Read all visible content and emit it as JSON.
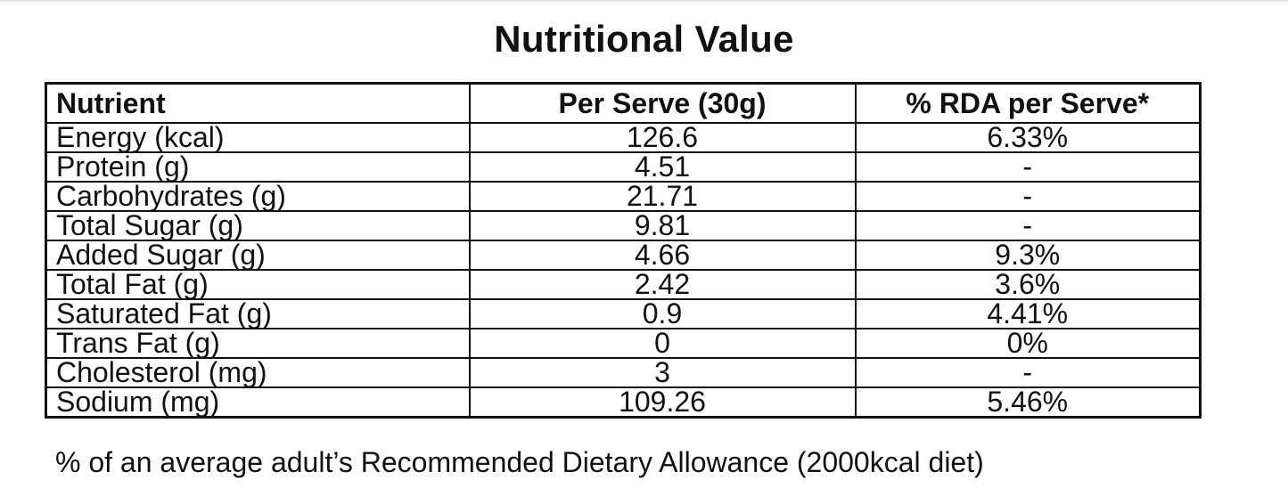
{
  "title": "Nutritional Value",
  "table": {
    "headers": {
      "nutrient": "Nutrient",
      "per_serve": "Per Serve (30g)",
      "rda": "% RDA per Serve*"
    },
    "rows": [
      {
        "nutrient": "Energy (kcal)",
        "per_serve": "126.6",
        "rda": "6.33%"
      },
      {
        "nutrient": "Protein (g)",
        "per_serve": "4.51",
        "rda": "-"
      },
      {
        "nutrient": "Carbohydrates (g)",
        "per_serve": "21.71",
        "rda": "-"
      },
      {
        "nutrient": "Total Sugar (g)",
        "per_serve": "9.81",
        "rda": "-"
      },
      {
        "nutrient": "Added Sugar (g)",
        "per_serve": "4.66",
        "rda": "9.3%"
      },
      {
        "nutrient": "Total Fat (g)",
        "per_serve": "2.42",
        "rda": "3.6%"
      },
      {
        "nutrient": "Saturated Fat (g)",
        "per_serve": "0.9",
        "rda": "4.41%"
      },
      {
        "nutrient": "Trans Fat (g)",
        "per_serve": "0",
        "rda": "0%"
      },
      {
        "nutrient": "Cholesterol (mg)",
        "per_serve": "3",
        "rda": "-"
      },
      {
        "nutrient": "Sodium (mg)",
        "per_serve": "109.26",
        "rda": "5.46%"
      }
    ]
  },
  "footnote": "% of an average adult’s Recommended Dietary Allowance (2000kcal diet)"
}
